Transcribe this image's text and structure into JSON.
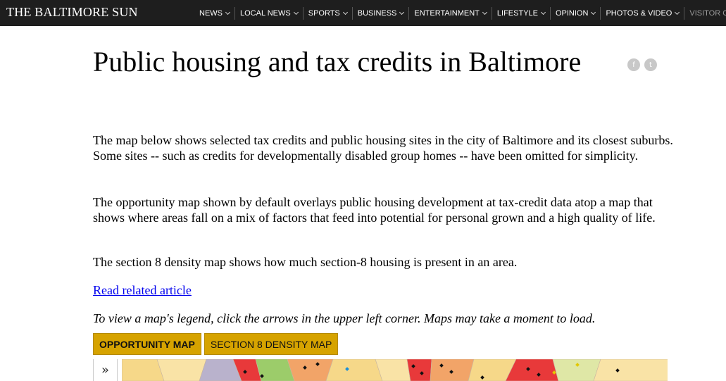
{
  "header": {
    "logo": "THE BALTIMORE SUN",
    "nav": [
      {
        "label": "NEWS",
        "muted": false
      },
      {
        "label": "LOCAL NEWS",
        "muted": false
      },
      {
        "label": "SPORTS",
        "muted": false
      },
      {
        "label": "BUSINESS",
        "muted": false
      },
      {
        "label": "ENTERTAINMENT",
        "muted": false
      },
      {
        "label": "LIFESTYLE",
        "muted": false
      },
      {
        "label": "OPINION",
        "muted": false
      },
      {
        "label": "PHOTOS & VIDEO",
        "muted": false
      },
      {
        "label": "VISITOR CENTER",
        "muted": true
      }
    ]
  },
  "article": {
    "title": "Public housing and tax credits in Baltimore",
    "share": {
      "facebook": "f",
      "twitter": "t"
    },
    "paragraphs": [
      "The map below shows selected tax credits and public housing sites in the city of Baltimore and its closest suburbs. Some sites -- such as credits for developmentally disabled group homes -- have been omitted for simplicity.",
      "The opportunity map shown by default overlays public housing development at tax-credit data atop a map that shows where areas fall on a mix of factors that feed into potential for personal grown and a high quality of life.",
      "The section 8 density map shows how much section-8 housing is present in an area."
    ],
    "related_link": "Read related article",
    "hint": "To view a map's legend, click the arrows in the upper left corner. Maps may take a moment to load."
  },
  "map": {
    "tabs": [
      {
        "label": "OPPORTUNITY MAP",
        "active": true
      },
      {
        "label": "SECTION 8 DENSITY MAP",
        "active": false
      }
    ],
    "legend_toggle": "»",
    "colors": {
      "tab_bg": "#d6a300",
      "high_opportunity": "#9ccc6a",
      "moderate": "#f6d889",
      "low": "#f2a468",
      "very_low": "#e8393a",
      "background": "#fbf0c7"
    }
  }
}
